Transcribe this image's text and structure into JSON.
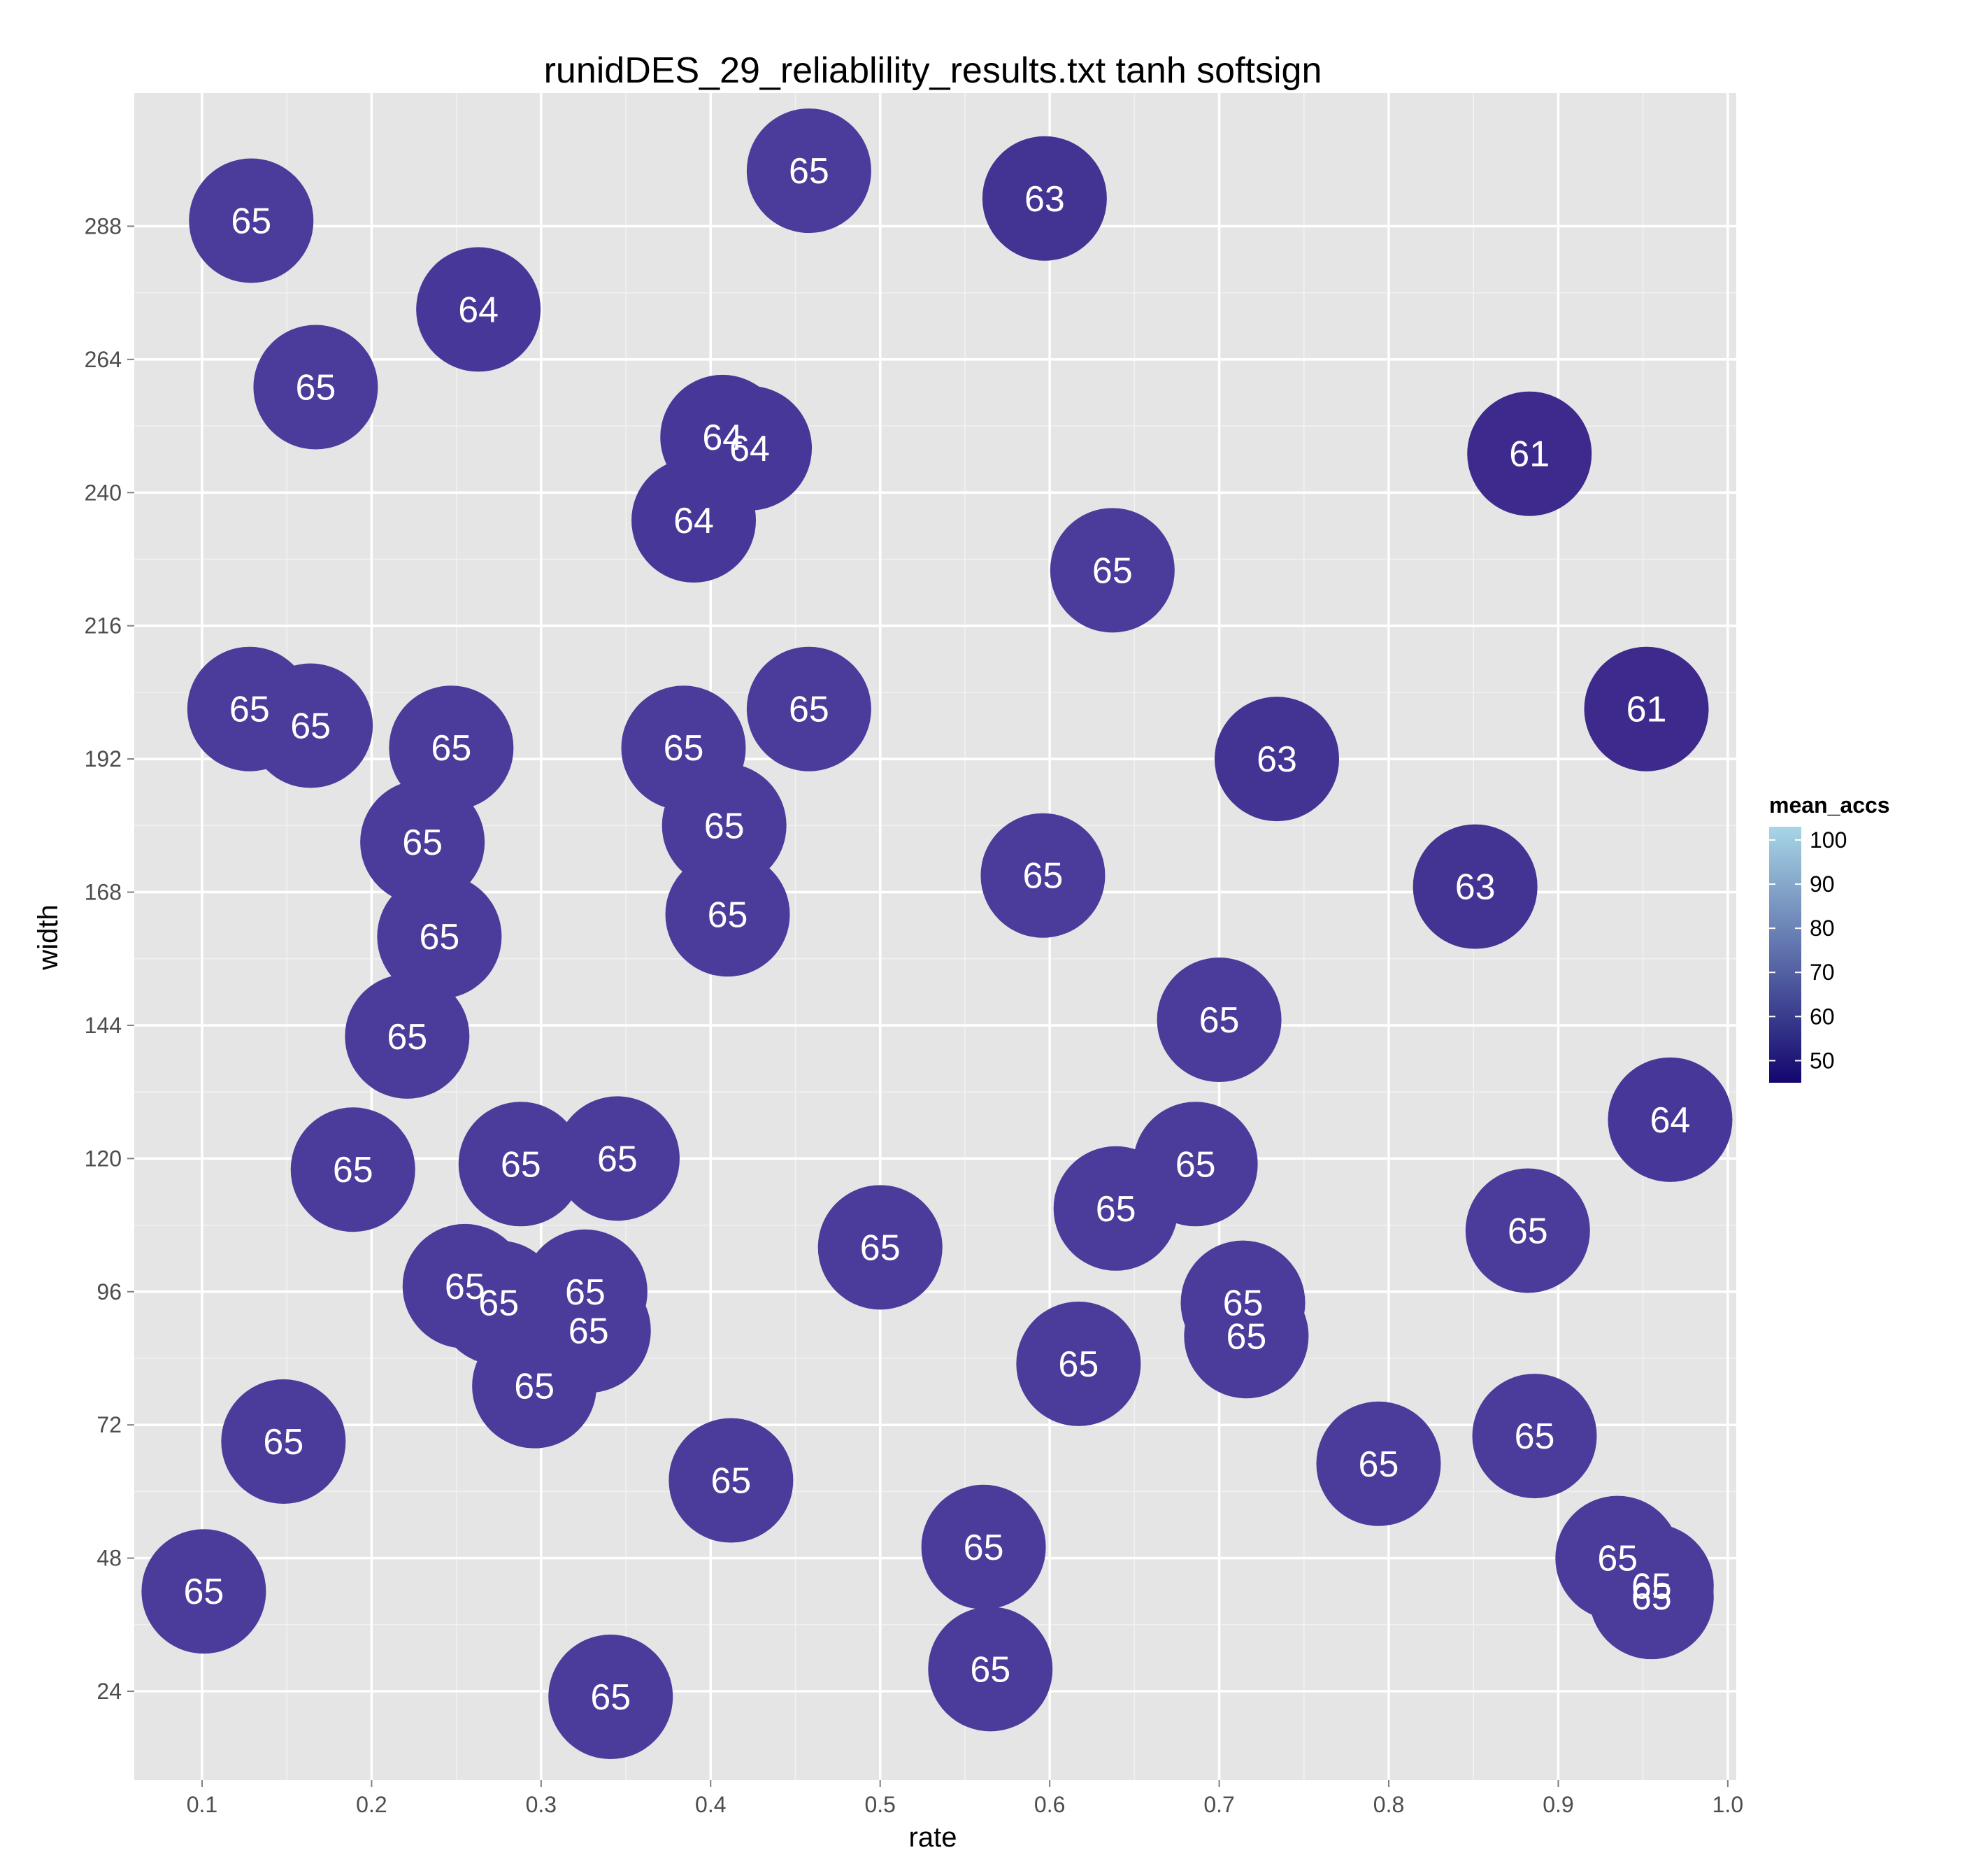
{
  "chart_data": {
    "type": "scatter",
    "title": "runidDES_29_reliablility_results.txt tanh softsign",
    "xlabel": "rate",
    "ylabel": "width",
    "xlim": [
      0.06,
      1.005
    ],
    "ylim": [
      8,
      312
    ],
    "x_ticks": [
      0.1,
      0.2,
      0.3,
      0.4,
      0.5,
      0.6,
      0.7,
      0.8,
      0.9,
      1.0
    ],
    "x_tick_labels": [
      "0.1",
      "0.2",
      "0.3",
      "0.4",
      "0.5",
      "0.6",
      "0.7",
      "0.8",
      "0.9",
      "1.0"
    ],
    "y_ticks": [
      24,
      48,
      72,
      96,
      120,
      144,
      168,
      192,
      216,
      240,
      264,
      288
    ],
    "y_tick_labels": [
      "24",
      "48",
      "72",
      "96",
      "120",
      "144",
      "168",
      "192",
      "216",
      "240",
      "264",
      "288"
    ],
    "grid": true,
    "legend": {
      "title": "mean_accs",
      "position": "right",
      "min": 45,
      "max": 103,
      "low_color": "#13066e",
      "high_color": "#a7d6e6",
      "ticks": [
        100,
        90,
        80,
        70,
        60,
        50
      ],
      "tick_labels": [
        "100",
        "90",
        "80",
        "70",
        "60",
        "50"
      ]
    },
    "colors": {
      "v65": "#4b3b9b",
      "v64": "#473798",
      "v63": "#433393",
      "v61": "#3e2a8c"
    },
    "points": [
      {
        "x": 0.129,
        "y": 289,
        "value": 65,
        "label": "65"
      },
      {
        "x": 0.458,
        "y": 298,
        "value": 65,
        "label": "65"
      },
      {
        "x": 0.597,
        "y": 293,
        "value": 63,
        "label": "63"
      },
      {
        "x": 0.263,
        "y": 273,
        "value": 64,
        "label": "64"
      },
      {
        "x": 0.167,
        "y": 259,
        "value": 65,
        "label": "65"
      },
      {
        "x": 0.407,
        "y": 250,
        "value": 64,
        "label": "64"
      },
      {
        "x": 0.423,
        "y": 248,
        "value": 64,
        "label": "64"
      },
      {
        "x": 0.883,
        "y": 247,
        "value": 61,
        "label": "61"
      },
      {
        "x": 0.39,
        "y": 235,
        "value": 64,
        "label": "64"
      },
      {
        "x": 0.637,
        "y": 226,
        "value": 65,
        "label": "65"
      },
      {
        "x": 0.128,
        "y": 201,
        "value": 65,
        "label": "65"
      },
      {
        "x": 0.164,
        "y": 198,
        "value": 65,
        "label": "65"
      },
      {
        "x": 0.458,
        "y": 201,
        "value": 65,
        "label": "65"
      },
      {
        "x": 0.952,
        "y": 201,
        "value": 61,
        "label": "61"
      },
      {
        "x": 0.247,
        "y": 194,
        "value": 65,
        "label": "65"
      },
      {
        "x": 0.384,
        "y": 194,
        "value": 65,
        "label": "65"
      },
      {
        "x": 0.734,
        "y": 192,
        "value": 63,
        "label": "63"
      },
      {
        "x": 0.408,
        "y": 180,
        "value": 65,
        "label": "65"
      },
      {
        "x": 0.23,
        "y": 177,
        "value": 65,
        "label": "65"
      },
      {
        "x": 0.596,
        "y": 171,
        "value": 65,
        "label": "65"
      },
      {
        "x": 0.851,
        "y": 169,
        "value": 63,
        "label": "63"
      },
      {
        "x": 0.41,
        "y": 164,
        "value": 65,
        "label": "65"
      },
      {
        "x": 0.24,
        "y": 160,
        "value": 65,
        "label": "65"
      },
      {
        "x": 0.7,
        "y": 145,
        "value": 65,
        "label": "65"
      },
      {
        "x": 0.221,
        "y": 142,
        "value": 65,
        "label": "65"
      },
      {
        "x": 0.966,
        "y": 127,
        "value": 64,
        "label": "64"
      },
      {
        "x": 0.345,
        "y": 120,
        "value": 65,
        "label": "65"
      },
      {
        "x": 0.288,
        "y": 119,
        "value": 65,
        "label": "65"
      },
      {
        "x": 0.686,
        "y": 119,
        "value": 65,
        "label": "65"
      },
      {
        "x": 0.189,
        "y": 118,
        "value": 65,
        "label": "65"
      },
      {
        "x": 0.639,
        "y": 111,
        "value": 65,
        "label": "65"
      },
      {
        "x": 0.882,
        "y": 107,
        "value": 65,
        "label": "65"
      },
      {
        "x": 0.5,
        "y": 104,
        "value": 65,
        "label": "65"
      },
      {
        "x": 0.255,
        "y": 97,
        "value": 65,
        "label": "65"
      },
      {
        "x": 0.326,
        "y": 96,
        "value": 65,
        "label": "65"
      },
      {
        "x": 0.275,
        "y": 94,
        "value": 65,
        "label": "65"
      },
      {
        "x": 0.714,
        "y": 94,
        "value": 65,
        "label": "65"
      },
      {
        "x": 0.328,
        "y": 89,
        "value": 65,
        "label": "65"
      },
      {
        "x": 0.716,
        "y": 88,
        "value": 65,
        "label": "65"
      },
      {
        "x": 0.617,
        "y": 83,
        "value": 65,
        "label": "65"
      },
      {
        "x": 0.296,
        "y": 79,
        "value": 65,
        "label": "65"
      },
      {
        "x": 0.148,
        "y": 69,
        "value": 65,
        "label": "65"
      },
      {
        "x": 0.886,
        "y": 70,
        "value": 65,
        "label": "65"
      },
      {
        "x": 0.794,
        "y": 65,
        "value": 65,
        "label": "65"
      },
      {
        "x": 0.412,
        "y": 62,
        "value": 65,
        "label": "65"
      },
      {
        "x": 0.561,
        "y": 50,
        "value": 65,
        "label": "65"
      },
      {
        "x": 0.935,
        "y": 48,
        "value": 65,
        "label": "65"
      },
      {
        "x": 0.955,
        "y": 41,
        "value": 65,
        "label": "65"
      },
      {
        "x": 0.955,
        "y": 43,
        "value": 65,
        "label": "65"
      },
      {
        "x": 0.101,
        "y": 42,
        "value": 65,
        "label": "65"
      },
      {
        "x": 0.565,
        "y": 28,
        "value": 65,
        "label": "65"
      },
      {
        "x": 0.341,
        "y": 23,
        "value": 65,
        "label": "65"
      }
    ]
  }
}
